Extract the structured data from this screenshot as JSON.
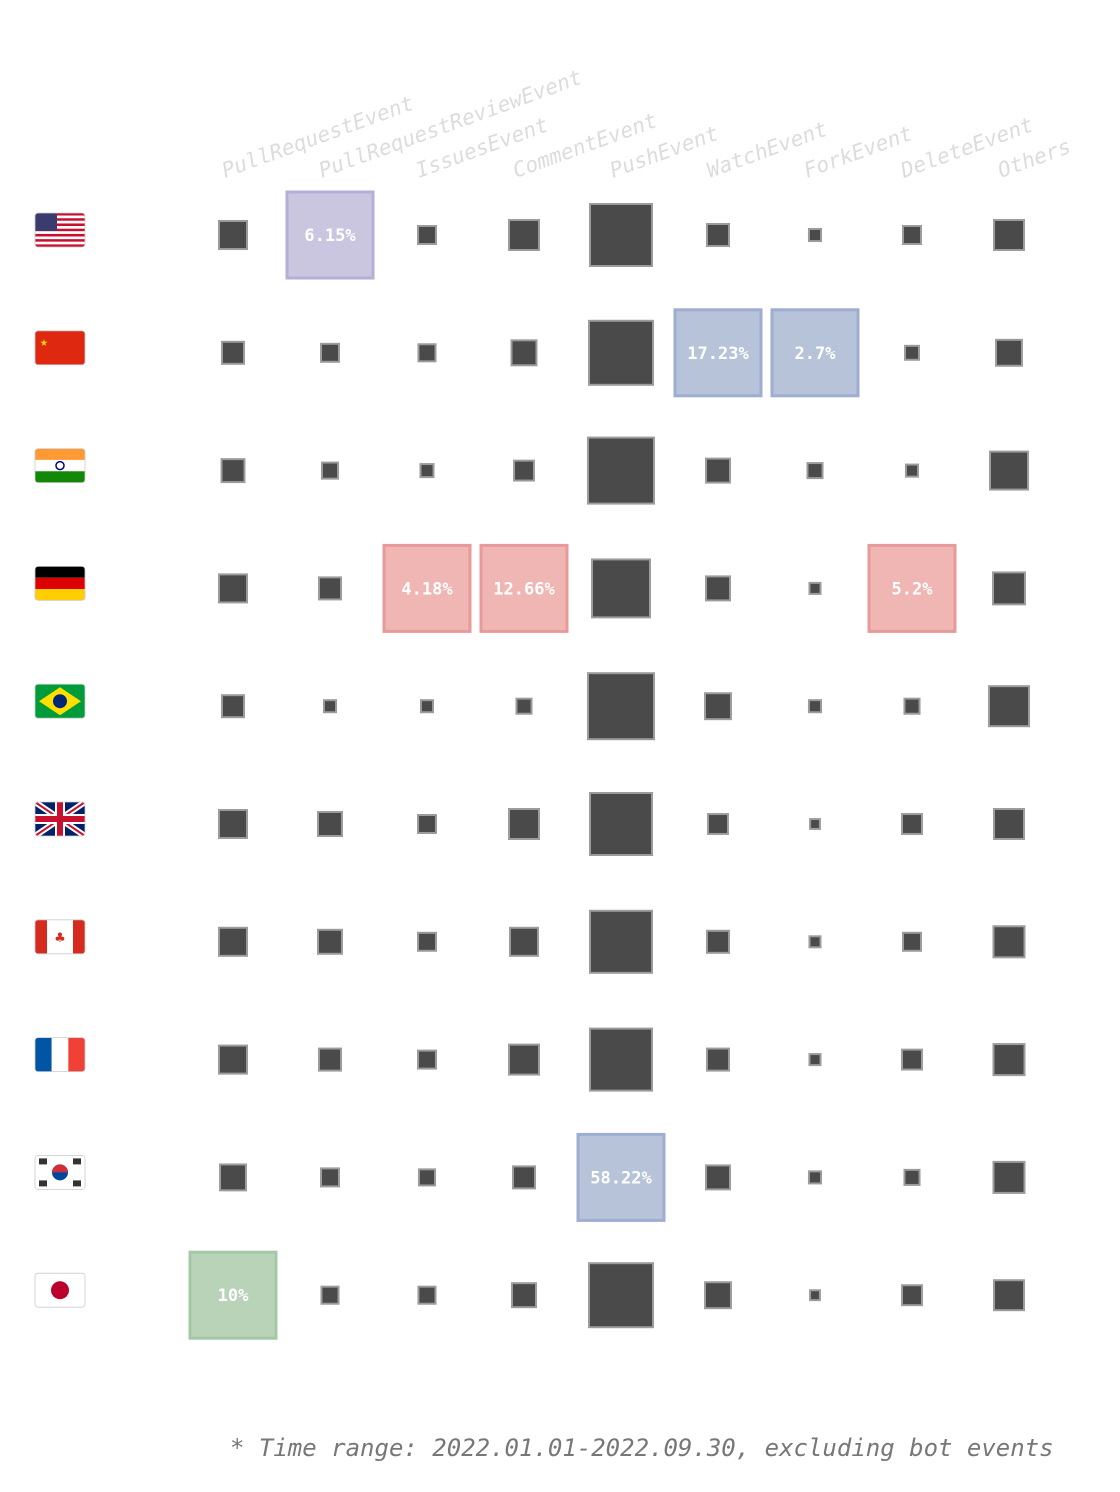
{
  "chart_data": {
    "type": "heatmap",
    "encoding": "square area proportional to share of events (%)",
    "columns": [
      "PullRequestEvent",
      "PullRequestReviewEvent",
      "IssuesEvent",
      "CommentEvent",
      "PushEvent",
      "WatchEvent",
      "ForkEvent",
      "DeleteEvent",
      "Others"
    ],
    "rows": [
      {
        "flag": "us-flag",
        "values": [
          9.7,
          6.15,
          4.0,
          11.1,
          47.5,
          6.0,
          1.8,
          4.0,
          11.1
        ],
        "highlight": {
          "1": {
            "label": "6.15%",
            "color": "#cbc6e0",
            "border": "#b5aed6"
          }
        }
      },
      {
        "flag": "cn-flag",
        "values": [
          6.0,
          4.0,
          3.6,
          7.7,
          50.6,
          17.23,
          2.7,
          2.4,
          8.3
        ],
        "highlight": {
          "5": {
            "label": "17.23%",
            "color": "#b7c3d8",
            "border": "#9eaed0"
          },
          "6": {
            "label": "2.7%",
            "color": "#b7c3d8",
            "border": "#9eaed0"
          }
        }
      },
      {
        "flag": "in-flag",
        "values": [
          6.5,
          3.2,
          2.1,
          4.9,
          53.8,
          7.1,
          2.8,
          1.8,
          17.8
        ],
        "highlight": {}
      },
      {
        "flag": "de-flag",
        "values": [
          9.7,
          6.0,
          4.18,
          12.66,
          41.5,
          7.1,
          1.5,
          5.2,
          12.6
        ],
        "highlight": {
          "2": {
            "label": "4.18%",
            "color": "#efb6b4",
            "border": "#e79a99"
          },
          "3": {
            "label": "12.66%",
            "color": "#efb6b4",
            "border": "#e79a99"
          },
          "7": {
            "label": "5.2%",
            "color": "#efb6b4",
            "border": "#e79a99"
          }
        }
      },
      {
        "flag": "br-flag",
        "values": [
          6.0,
          1.8,
          1.8,
          2.8,
          53.8,
          8.3,
          1.8,
          2.8,
          19.8
        ],
        "highlight": {}
      },
      {
        "flag": "gb-flag",
        "values": [
          9.7,
          7.1,
          4.0,
          11.1,
          47.5,
          4.9,
          1.2,
          4.9,
          11.1
        ],
        "highlight": {}
      },
      {
        "flag": "ca-flag",
        "values": [
          9.7,
          7.1,
          4.0,
          9.7,
          47.5,
          6.0,
          1.5,
          4.0,
          11.9
        ],
        "highlight": {}
      },
      {
        "flag": "fr-flag",
        "values": [
          9.7,
          6.0,
          4.0,
          11.1,
          47.5,
          6.0,
          1.5,
          4.9,
          11.9
        ],
        "highlight": {}
      },
      {
        "flag": "kr-flag",
        "values": [
          8.3,
          4.0,
          3.2,
          6.0,
          58.22,
          7.1,
          1.8,
          2.8,
          11.9
        ],
        "highlight": {
          "4": {
            "label": "58.22%",
            "color": "#b7c3d8",
            "border": "#9eaed0"
          }
        }
      },
      {
        "flag": "jp-flag",
        "values": [
          10,
          3.6,
          3.6,
          7.1,
          50.6,
          8.3,
          1.2,
          4.9,
          11.1
        ],
        "highlight": {
          "0": {
            "label": "10%",
            "color": "#b9d3b9",
            "border": "#a6c7a6"
          }
        }
      }
    ],
    "colors": {
      "square": "#4a4a4a",
      "square_border": "#9c9c9c",
      "column_label": "#dcdcdc"
    }
  },
  "footnote": "* Time range: 2022.01.01-2022.09.30, excluding bot events"
}
